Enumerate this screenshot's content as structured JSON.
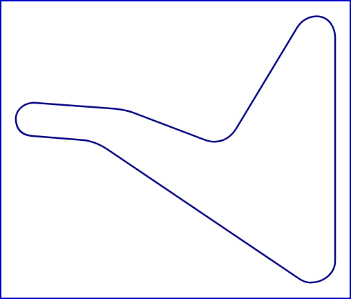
{
  "diagram": {
    "frame_color": "#0000cc",
    "outline_color": "#000080",
    "background_color": "#ffffff"
  }
}
